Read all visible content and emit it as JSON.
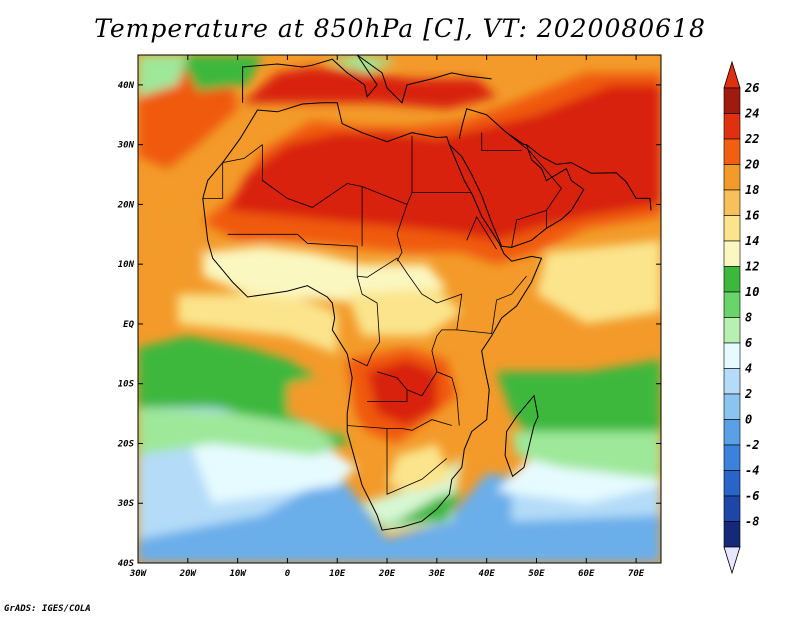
{
  "title": "Temperature at 850hPa [C], VT: 2020080618",
  "credit": "GrADS: IGES/COLA",
  "map": {
    "lon_range": [
      -30,
      75
    ],
    "lat_range": [
      -40,
      45
    ],
    "lon_ticks": [
      {
        "value": -30,
        "label": "30W"
      },
      {
        "value": -20,
        "label": "20W"
      },
      {
        "value": -10,
        "label": "10W"
      },
      {
        "value": 0,
        "label": "0"
      },
      {
        "value": 10,
        "label": "10E"
      },
      {
        "value": 20,
        "label": "20E"
      },
      {
        "value": 30,
        "label": "30E"
      },
      {
        "value": 40,
        "label": "40E"
      },
      {
        "value": 50,
        "label": "50E"
      },
      {
        "value": 60,
        "label": "60E"
      },
      {
        "value": 70,
        "label": "70E"
      }
    ],
    "lat_ticks": [
      {
        "value": 40,
        "label": "40N"
      },
      {
        "value": 30,
        "label": "30N"
      },
      {
        "value": 20,
        "label": "20N"
      },
      {
        "value": 10,
        "label": "10N"
      },
      {
        "value": 0,
        "label": "EQ"
      },
      {
        "value": -10,
        "label": "10S"
      },
      {
        "value": -20,
        "label": "20S"
      },
      {
        "value": -30,
        "label": "30S"
      },
      {
        "value": -40,
        "label": "40S"
      }
    ]
  },
  "colorbar": {
    "levels": [
      {
        "label": "26",
        "color": "#a01a0f"
      },
      {
        "label": "24",
        "color": "#e0300f"
      },
      {
        "label": "22",
        "color": "#f06010"
      },
      {
        "label": "20",
        "color": "#f39a2a"
      },
      {
        "label": "18",
        "color": "#f7c05a"
      },
      {
        "label": "16",
        "color": "#fbe48c"
      },
      {
        "label": "14",
        "color": "#fbf7c0"
      },
      {
        "label": "12",
        "color": "#3cb83c"
      },
      {
        "label": "10",
        "color": "#6ad46a"
      },
      {
        "label": "8",
        "color": "#b8f0b4"
      },
      {
        "label": "6",
        "color": "#e6fbff"
      },
      {
        "label": "4",
        "color": "#b4dcf8"
      },
      {
        "label": "2",
        "color": "#8cc4f0"
      },
      {
        "label": "0",
        "color": "#5aa0e6"
      },
      {
        "label": "-2",
        "color": "#3c82dc"
      },
      {
        "label": "-4",
        "color": "#2a64c8"
      },
      {
        "label": "-6",
        "color": "#1e46a8"
      },
      {
        "label": "-8",
        "color": "#142a78"
      }
    ],
    "top_triangle_color": "#e0300f",
    "bottom_triangle_color": "#e6e6ff"
  },
  "palette": {
    "hot": "#d8200a",
    "warm": "#f05a10",
    "orange": "#f39a2a",
    "yellow": "#fbe48c",
    "cream": "#fbf7c0",
    "green": "#3cb83c",
    "lightgreen": "#9ee89a",
    "mint": "#d6f7d2",
    "pale": "#e6fbff",
    "sky": "#b4dcf8",
    "blue": "#6aaeea",
    "deep": "#2a64c8"
  }
}
